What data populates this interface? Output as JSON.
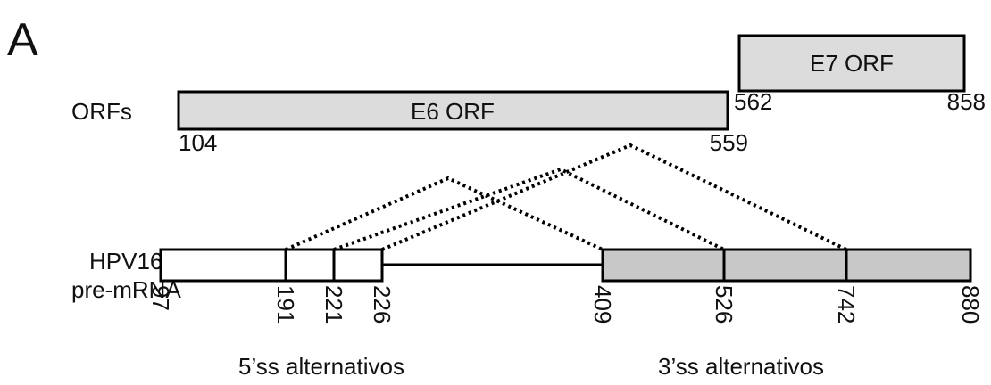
{
  "panel_label": "A",
  "orfs": {
    "label": "ORFs",
    "e6": {
      "label": "E6 ORF",
      "start": 104,
      "end": 559
    },
    "e7": {
      "label": "E7 ORF",
      "start": 562,
      "end": 858
    }
  },
  "pre_mrna": {
    "label_lines": [
      "HPV16",
      "pre-mRNA"
    ],
    "positions": [
      97,
      191,
      221,
      226,
      409,
      526,
      742,
      880
    ]
  },
  "splice_labels": {
    "five_prime": "5’ss alternativos",
    "three_prime": "3’ss alternativos"
  }
}
